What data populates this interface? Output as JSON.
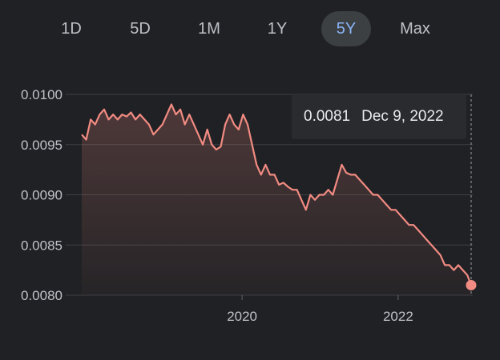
{
  "range_tabs": {
    "items": [
      {
        "label": "1D"
      },
      {
        "label": "5D"
      },
      {
        "label": "1M"
      },
      {
        "label": "1Y"
      },
      {
        "label": "5Y",
        "active": true
      },
      {
        "label": "Max"
      }
    ]
  },
  "tooltip": {
    "value": "0.0081",
    "date": "Dec 9, 2022"
  },
  "colors": {
    "background": "#202124",
    "line": "#f28b82",
    "active_tab_bg": "#3c4043",
    "active_tab_text": "#8ab4f8",
    "text": "#bdc1c6"
  },
  "chart_data": {
    "type": "area",
    "title": "",
    "xlabel": "",
    "ylabel": "",
    "ylim": [
      0.008,
      0.01
    ],
    "xlim": [
      "2017-12-11",
      "2022-12-09"
    ],
    "y_ticks": [
      "0.0100",
      "0.0095",
      "0.0090",
      "0.0085",
      "0.0080"
    ],
    "y_tick_values": [
      0.01,
      0.0095,
      0.009,
      0.0085,
      0.008
    ],
    "x_ticks": [
      "2020",
      "2022"
    ],
    "x_tick_dates": [
      "2020-01-01",
      "2022-01-01"
    ],
    "grid": true,
    "series": [
      {
        "x": [
          "2017-12-11",
          "2018-01-01",
          "2018-01-22",
          "2018-02-12",
          "2018-03-05",
          "2018-03-26",
          "2018-04-16",
          "2018-05-07",
          "2018-05-28",
          "2018-06-18",
          "2018-07-09",
          "2018-07-30",
          "2018-08-20",
          "2018-09-10",
          "2018-10-01",
          "2018-10-22",
          "2018-11-12",
          "2018-12-03",
          "2018-12-24",
          "2019-01-14",
          "2019-02-04",
          "2019-02-25",
          "2019-03-18",
          "2019-04-08",
          "2019-04-29",
          "2019-05-20",
          "2019-06-10",
          "2019-07-01",
          "2019-07-22",
          "2019-08-12",
          "2019-09-02",
          "2019-09-23",
          "2019-10-14",
          "2019-11-04",
          "2019-11-25",
          "2019-12-16",
          "2020-01-06",
          "2020-01-27",
          "2020-02-17",
          "2020-03-09",
          "2020-03-30",
          "2020-04-20",
          "2020-05-11",
          "2020-06-01",
          "2020-06-22",
          "2020-07-13",
          "2020-08-03",
          "2020-08-24",
          "2020-09-14",
          "2020-10-05",
          "2020-10-26",
          "2020-11-16",
          "2020-12-07",
          "2020-12-28",
          "2021-01-18",
          "2021-02-08",
          "2021-03-01",
          "2021-03-22",
          "2021-04-12",
          "2021-05-03",
          "2021-05-24",
          "2021-06-14",
          "2021-07-05",
          "2021-07-26",
          "2021-08-16",
          "2021-09-06",
          "2021-09-27",
          "2021-10-18",
          "2021-11-08",
          "2021-11-29",
          "2021-12-20",
          "2022-01-10",
          "2022-01-31",
          "2022-02-21",
          "2022-03-14",
          "2022-04-04",
          "2022-04-25",
          "2022-05-16",
          "2022-06-06",
          "2022-06-27",
          "2022-07-18",
          "2022-08-08",
          "2022-08-29",
          "2022-09-19",
          "2022-10-10",
          "2022-10-31",
          "2022-11-21",
          "2022-12-09"
        ],
        "values": [
          0.0096,
          0.00955,
          0.00975,
          0.0097,
          0.0098,
          0.00985,
          0.00975,
          0.0098,
          0.00975,
          0.0098,
          0.00978,
          0.00982,
          0.00975,
          0.0098,
          0.00975,
          0.0097,
          0.0096,
          0.00965,
          0.0097,
          0.0098,
          0.0099,
          0.0098,
          0.00985,
          0.0097,
          0.0098,
          0.0097,
          0.0096,
          0.0095,
          0.00965,
          0.0095,
          0.00945,
          0.00948,
          0.0097,
          0.0098,
          0.0097,
          0.00965,
          0.0098,
          0.0097,
          0.0095,
          0.0093,
          0.0092,
          0.0093,
          0.0092,
          0.0092,
          0.0091,
          0.00912,
          0.00908,
          0.00905,
          0.00905,
          0.00895,
          0.00885,
          0.009,
          0.00895,
          0.009,
          0.009,
          0.00905,
          0.009,
          0.00915,
          0.0093,
          0.00922,
          0.0092,
          0.0092,
          0.00915,
          0.0091,
          0.00905,
          0.009,
          0.009,
          0.00895,
          0.0089,
          0.00885,
          0.00885,
          0.0088,
          0.00875,
          0.0087,
          0.0087,
          0.00865,
          0.0086,
          0.00855,
          0.0085,
          0.00845,
          0.0084,
          0.0083,
          0.0083,
          0.00825,
          0.0083,
          0.00825,
          0.0082,
          0.0081
        ]
      }
    ],
    "current_point": {
      "x": "2022-12-09",
      "y": 0.0081
    }
  }
}
